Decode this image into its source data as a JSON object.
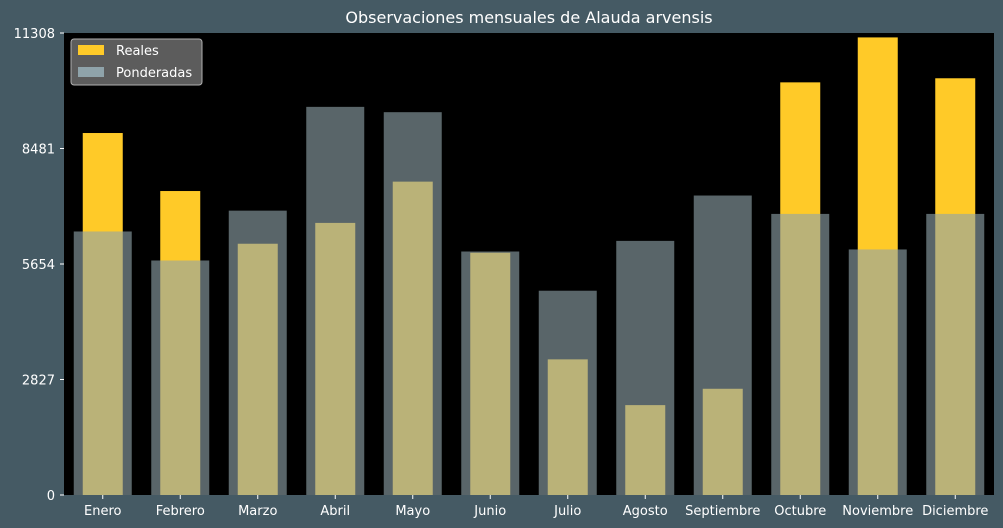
{
  "chart_data": {
    "type": "bar",
    "title": "Observaciones mensuales de Alauda arvensis",
    "xlabel": "",
    "ylabel": "",
    "categories": [
      "Enero",
      "Febrero",
      "Marzo",
      "Abril",
      "Mayo",
      "Junio",
      "Julio",
      "Agosto",
      "Septiembre",
      "Octubre",
      "Noviembre",
      "Diciembre"
    ],
    "series": [
      {
        "name": "Reales",
        "color": "#ffca28",
        "values": [
          8860,
          7440,
          6150,
          6660,
          7670,
          5930,
          3320,
          2200,
          2600,
          10100,
          11200,
          10200
        ]
      },
      {
        "name": "Ponderadas",
        "color": "#8fa3aa",
        "values": [
          6450,
          5740,
          6960,
          9500,
          9370,
          5960,
          5000,
          6220,
          7330,
          6880,
          6010,
          6880
        ]
      }
    ],
    "ylim": [
      0,
      11308
    ],
    "yticks": [
      0,
      2827,
      5654,
      8481,
      11308
    ],
    "grid": false,
    "legend": "top-left",
    "plot_background": "#000000",
    "figure_background": "#455a64"
  }
}
